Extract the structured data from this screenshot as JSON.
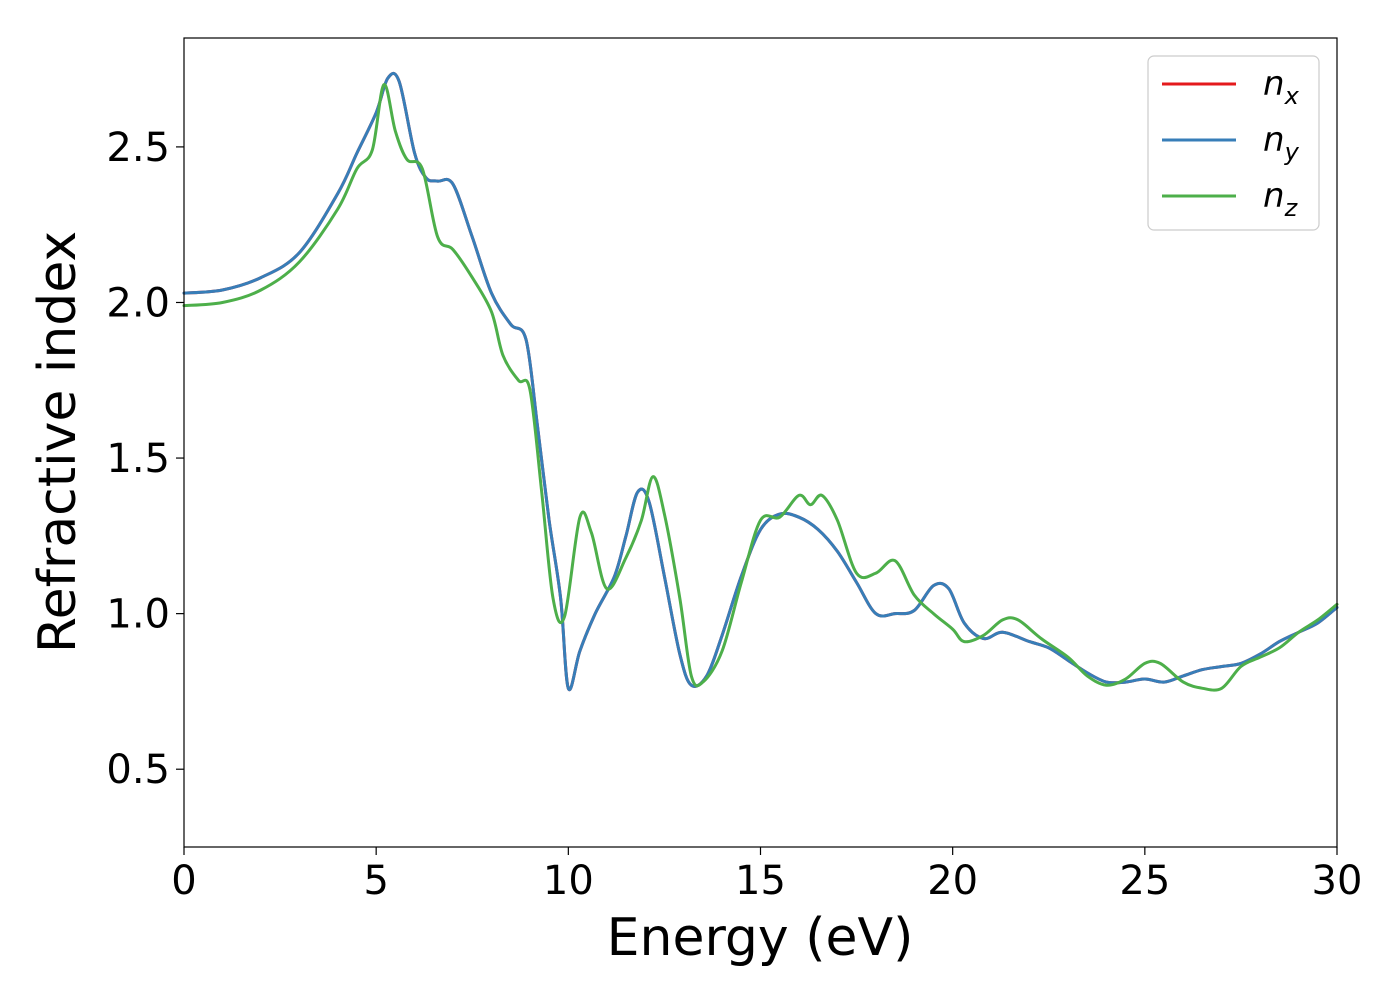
{
  "chart_data": {
    "type": "line",
    "title": "",
    "xlabel": "Energy (eV)",
    "ylabel": "Refractive index",
    "xlim": [
      0,
      30
    ],
    "ylim": [
      0.25,
      2.85
    ],
    "xticks": [
      0,
      5,
      10,
      15,
      20,
      25,
      30
    ],
    "xtick_labels": [
      "0",
      "5",
      "10",
      "15",
      "20",
      "25",
      "30"
    ],
    "yticks": [
      0.5,
      1.0,
      1.5,
      2.0,
      2.5
    ],
    "ytick_labels": [
      "0.5",
      "1.0",
      "1.5",
      "2.0",
      "2.5"
    ],
    "grid": false,
    "legend_position": "top-right",
    "series": [
      {
        "name": "n",
        "subscript": "x",
        "color": "#e41a1c",
        "points": [
          [
            0,
            2.03
          ],
          [
            1,
            2.04
          ],
          [
            2,
            2.08
          ],
          [
            3,
            2.16
          ],
          [
            4,
            2.35
          ],
          [
            4.5,
            2.48
          ],
          [
            5,
            2.61
          ],
          [
            5.3,
            2.72
          ],
          [
            5.6,
            2.71
          ],
          [
            6,
            2.48
          ],
          [
            6.3,
            2.4
          ],
          [
            6.6,
            2.39
          ],
          [
            7,
            2.38
          ],
          [
            7.5,
            2.21
          ],
          [
            8,
            2.03
          ],
          [
            8.5,
            1.93
          ],
          [
            8.9,
            1.88
          ],
          [
            9.2,
            1.6
          ],
          [
            9.5,
            1.3
          ],
          [
            9.8,
            1.05
          ],
          [
            10,
            0.76
          ],
          [
            10.3,
            0.88
          ],
          [
            10.7,
            1.0
          ],
          [
            11.2,
            1.12
          ],
          [
            11.5,
            1.25
          ],
          [
            11.8,
            1.39
          ],
          [
            12.1,
            1.36
          ],
          [
            12.5,
            1.12
          ],
          [
            12.9,
            0.87
          ],
          [
            13.2,
            0.77
          ],
          [
            13.6,
            0.8
          ],
          [
            14,
            0.93
          ],
          [
            14.5,
            1.12
          ],
          [
            15,
            1.27
          ],
          [
            15.5,
            1.32
          ],
          [
            16,
            1.31
          ],
          [
            16.5,
            1.27
          ],
          [
            17,
            1.2
          ],
          [
            17.5,
            1.1
          ],
          [
            18,
            1.0
          ],
          [
            18.5,
            1.0
          ],
          [
            19,
            1.01
          ],
          [
            19.5,
            1.09
          ],
          [
            19.9,
            1.08
          ],
          [
            20.3,
            0.97
          ],
          [
            20.8,
            0.92
          ],
          [
            21.3,
            0.94
          ],
          [
            22,
            0.91
          ],
          [
            22.5,
            0.89
          ],
          [
            23,
            0.85
          ],
          [
            23.5,
            0.81
          ],
          [
            24,
            0.78
          ],
          [
            24.5,
            0.78
          ],
          [
            25,
            0.79
          ],
          [
            25.5,
            0.78
          ],
          [
            26,
            0.8
          ],
          [
            26.5,
            0.82
          ],
          [
            27,
            0.83
          ],
          [
            27.5,
            0.84
          ],
          [
            28,
            0.87
          ],
          [
            28.5,
            0.91
          ],
          [
            29,
            0.94
          ],
          [
            29.5,
            0.97
          ],
          [
            30,
            1.02
          ]
        ]
      },
      {
        "name": "n",
        "subscript": "y",
        "color": "#377eb8",
        "points": [
          [
            0,
            2.03
          ],
          [
            1,
            2.04
          ],
          [
            2,
            2.08
          ],
          [
            3,
            2.16
          ],
          [
            4,
            2.35
          ],
          [
            4.5,
            2.48
          ],
          [
            5,
            2.61
          ],
          [
            5.3,
            2.72
          ],
          [
            5.6,
            2.71
          ],
          [
            6,
            2.48
          ],
          [
            6.3,
            2.4
          ],
          [
            6.6,
            2.39
          ],
          [
            7,
            2.38
          ],
          [
            7.5,
            2.21
          ],
          [
            8,
            2.03
          ],
          [
            8.5,
            1.93
          ],
          [
            8.9,
            1.88
          ],
          [
            9.2,
            1.6
          ],
          [
            9.5,
            1.3
          ],
          [
            9.8,
            1.05
          ],
          [
            10,
            0.76
          ],
          [
            10.3,
            0.88
          ],
          [
            10.7,
            1.0
          ],
          [
            11.2,
            1.12
          ],
          [
            11.5,
            1.25
          ],
          [
            11.8,
            1.39
          ],
          [
            12.1,
            1.36
          ],
          [
            12.5,
            1.12
          ],
          [
            12.9,
            0.87
          ],
          [
            13.2,
            0.77
          ],
          [
            13.6,
            0.8
          ],
          [
            14,
            0.93
          ],
          [
            14.5,
            1.12
          ],
          [
            15,
            1.27
          ],
          [
            15.5,
            1.32
          ],
          [
            16,
            1.31
          ],
          [
            16.5,
            1.27
          ],
          [
            17,
            1.2
          ],
          [
            17.5,
            1.1
          ],
          [
            18,
            1.0
          ],
          [
            18.5,
            1.0
          ],
          [
            19,
            1.01
          ],
          [
            19.5,
            1.09
          ],
          [
            19.9,
            1.08
          ],
          [
            20.3,
            0.97
          ],
          [
            20.8,
            0.92
          ],
          [
            21.3,
            0.94
          ],
          [
            22,
            0.91
          ],
          [
            22.5,
            0.89
          ],
          [
            23,
            0.85
          ],
          [
            23.5,
            0.81
          ],
          [
            24,
            0.78
          ],
          [
            24.5,
            0.78
          ],
          [
            25,
            0.79
          ],
          [
            25.5,
            0.78
          ],
          [
            26,
            0.8
          ],
          [
            26.5,
            0.82
          ],
          [
            27,
            0.83
          ],
          [
            27.5,
            0.84
          ],
          [
            28,
            0.87
          ],
          [
            28.5,
            0.91
          ],
          [
            29,
            0.94
          ],
          [
            29.5,
            0.97
          ],
          [
            30,
            1.02
          ]
        ]
      },
      {
        "name": "n",
        "subscript": "z",
        "color": "#4daf4a",
        "points": [
          [
            0,
            1.99
          ],
          [
            1,
            2.0
          ],
          [
            2,
            2.04
          ],
          [
            3,
            2.13
          ],
          [
            4,
            2.3
          ],
          [
            4.5,
            2.43
          ],
          [
            4.9,
            2.49
          ],
          [
            5.2,
            2.7
          ],
          [
            5.5,
            2.55
          ],
          [
            5.8,
            2.46
          ],
          [
            6.2,
            2.43
          ],
          [
            6.6,
            2.21
          ],
          [
            7,
            2.17
          ],
          [
            7.5,
            2.08
          ],
          [
            8,
            1.97
          ],
          [
            8.3,
            1.83
          ],
          [
            8.7,
            1.75
          ],
          [
            9,
            1.72
          ],
          [
            9.3,
            1.4
          ],
          [
            9.6,
            1.05
          ],
          [
            9.9,
            0.99
          ],
          [
            10.3,
            1.31
          ],
          [
            10.6,
            1.26
          ],
          [
            11,
            1.08
          ],
          [
            11.5,
            1.18
          ],
          [
            11.9,
            1.3
          ],
          [
            12.2,
            1.44
          ],
          [
            12.5,
            1.32
          ],
          [
            12.9,
            1.05
          ],
          [
            13.2,
            0.8
          ],
          [
            13.5,
            0.78
          ],
          [
            14,
            0.88
          ],
          [
            14.5,
            1.1
          ],
          [
            15,
            1.3
          ],
          [
            15.5,
            1.31
          ],
          [
            16,
            1.38
          ],
          [
            16.3,
            1.35
          ],
          [
            16.6,
            1.38
          ],
          [
            17,
            1.3
          ],
          [
            17.5,
            1.13
          ],
          [
            18,
            1.13
          ],
          [
            18.5,
            1.17
          ],
          [
            19,
            1.06
          ],
          [
            19.5,
            1.0
          ],
          [
            20,
            0.95
          ],
          [
            20.3,
            0.91
          ],
          [
            20.8,
            0.93
          ],
          [
            21.3,
            0.98
          ],
          [
            21.7,
            0.98
          ],
          [
            22.3,
            0.92
          ],
          [
            23,
            0.86
          ],
          [
            23.5,
            0.8
          ],
          [
            24,
            0.77
          ],
          [
            24.5,
            0.79
          ],
          [
            25,
            0.84
          ],
          [
            25.4,
            0.84
          ],
          [
            26,
            0.78
          ],
          [
            26.5,
            0.76
          ],
          [
            27,
            0.76
          ],
          [
            27.5,
            0.83
          ],
          [
            28,
            0.86
          ],
          [
            28.5,
            0.89
          ],
          [
            29,
            0.94
          ],
          [
            29.5,
            0.98
          ],
          [
            30,
            1.03
          ]
        ]
      }
    ]
  }
}
